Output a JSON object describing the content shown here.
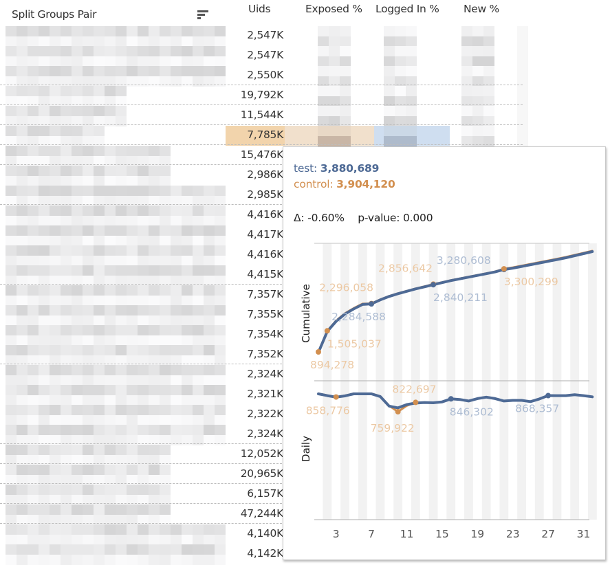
{
  "table": {
    "headers": {
      "split_groups_pair": "Split Groups Pair",
      "uids": "Uids",
      "exposed_pct": "Exposed %",
      "logged_in_pct": "Logged In %",
      "new_pct": "New %"
    },
    "sort_icon": "sort-descending-icon",
    "rows": [
      {
        "uids": "2,547K",
        "group_break_before": false
      },
      {
        "uids": "2,547K",
        "group_break_before": false
      },
      {
        "uids": "2,550K",
        "group_break_before": false
      },
      {
        "uids": "19,792K",
        "group_break_before": true
      },
      {
        "uids": "11,544K",
        "group_break_before": true
      },
      {
        "uids": "7,785K",
        "group_break_before": true,
        "highlighted": true
      },
      {
        "uids": "15,476K",
        "group_break_before": true
      },
      {
        "uids": "2,986K",
        "group_break_before": true
      },
      {
        "uids": "2,985K",
        "group_break_before": false
      },
      {
        "uids": "4,416K",
        "group_break_before": true
      },
      {
        "uids": "4,417K",
        "group_break_before": false
      },
      {
        "uids": "4,416K",
        "group_break_before": false
      },
      {
        "uids": "4,415K",
        "group_break_before": false
      },
      {
        "uids": "7,357K",
        "group_break_before": true
      },
      {
        "uids": "7,355K",
        "group_break_before": false
      },
      {
        "uids": "7,354K",
        "group_break_before": false
      },
      {
        "uids": "7,352K",
        "group_break_before": false
      },
      {
        "uids": "2,324K",
        "group_break_before": true
      },
      {
        "uids": "2,321K",
        "group_break_before": false
      },
      {
        "uids": "2,322K",
        "group_break_before": false
      },
      {
        "uids": "2,324K",
        "group_break_before": false
      },
      {
        "uids": "12,052K",
        "group_break_before": true
      },
      {
        "uids": "20,965K",
        "group_break_before": true
      },
      {
        "uids": "6,157K",
        "group_break_before": true
      },
      {
        "uids": "47,244K",
        "group_break_before": true
      },
      {
        "uids": "4,140K",
        "group_break_before": true
      },
      {
        "uids": "4,142K",
        "group_break_before": false
      }
    ],
    "highlight_colors": {
      "uids": "#f2d4ac",
      "exposed": "#f1e0cc",
      "logged_in": "#cfdef0"
    }
  },
  "tooltip": {
    "test_label": "test:",
    "test_value": "3,880,689",
    "control_label": "control:",
    "control_value": "3,904,120",
    "delta_label": "Δ:",
    "delta_value": "-0.60%",
    "pvalue_label": "p-value:",
    "pvalue_value": "0.000",
    "colors": {
      "test": "#4e6a95",
      "control": "#d28f4f",
      "test_label_light": "#aebdd3",
      "control_label_light": "#ecc9a4"
    }
  },
  "chart_data": [
    {
      "type": "line",
      "title": "",
      "ylabel": "Cumulative",
      "xlabel": "",
      "x": [
        1,
        2,
        3,
        4,
        5,
        6,
        7,
        8,
        9,
        10,
        11,
        12,
        13,
        14,
        15,
        16,
        17,
        18,
        19,
        20,
        21,
        22,
        23,
        24,
        25,
        26,
        27,
        28,
        29,
        30,
        31,
        32
      ],
      "ylim": [
        0,
        4200000
      ],
      "series": [
        {
          "name": "test",
          "color": "#4e6a95",
          "values": [
            880000,
            1490000,
            1780000,
            1990000,
            2140000,
            2270000,
            2284588,
            2400000,
            2500000,
            2580000,
            2650000,
            2720000,
            2780000,
            2840211,
            2900000,
            2960000,
            3010000,
            3060000,
            3110000,
            3160000,
            3210000,
            3280608,
            3320000,
            3370000,
            3420000,
            3470000,
            3520000,
            3570000,
            3620000,
            3680000,
            3740000,
            3800000
          ]
        },
        {
          "name": "control",
          "color": "#d28f4f",
          "values": [
            894278,
            1505037,
            1800000,
            2010000,
            2160000,
            2290000,
            2296058,
            2410000,
            2510000,
            2590000,
            2660000,
            2730000,
            2790000,
            2856642,
            2910000,
            2970000,
            3020000,
            3070000,
            3120000,
            3170000,
            3220000,
            3300299,
            3340000,
            3390000,
            3440000,
            3490000,
            3540000,
            3590000,
            3640000,
            3700000,
            3760000,
            3820000
          ]
        }
      ],
      "annotations": [
        {
          "series": "control",
          "x": 1,
          "label": "894,278"
        },
        {
          "series": "control",
          "x": 2,
          "label": "1,505,037"
        },
        {
          "series": "control",
          "x": 7,
          "label": "2,296,058"
        },
        {
          "series": "test",
          "x": 7,
          "label": "2,284,588"
        },
        {
          "series": "control",
          "x": 14,
          "label": "2,856,642"
        },
        {
          "series": "test",
          "x": 14,
          "label": "2,840,211"
        },
        {
          "series": "test",
          "x": 22,
          "label": "3,280,608"
        },
        {
          "series": "control",
          "x": 22,
          "label": "3,300,299"
        }
      ],
      "grid": "vertical-bands"
    },
    {
      "type": "line",
      "title": "",
      "ylabel": "Daily",
      "xlabel": "",
      "x": [
        1,
        2,
        3,
        4,
        5,
        6,
        7,
        8,
        9,
        10,
        11,
        12,
        13,
        14,
        15,
        16,
        17,
        18,
        19,
        20,
        21,
        22,
        23,
        24,
        25,
        26,
        27,
        28,
        29,
        30,
        31,
        32
      ],
      "xticks": [
        3,
        7,
        11,
        15,
        19,
        23,
        27,
        31
      ],
      "ylim": [
        0,
        950000
      ],
      "series": [
        {
          "name": "test",
          "color": "#4e6a95",
          "values": [
            880000,
            868000,
            858000,
            866000,
            880000,
            880000,
            880000,
            862000,
            798000,
            786000,
            808000,
            818000,
            822000,
            820000,
            826000,
            846302,
            842000,
            832000,
            848000,
            858000,
            848000,
            832000,
            836000,
            836000,
            828000,
            846000,
            868357,
            868000,
            868000,
            874000,
            868000,
            860000
          ]
        },
        {
          "name": "control",
          "color": "#d28f4f",
          "values": [
            882000,
            870000,
            858776,
            868000,
            882000,
            882000,
            882000,
            864000,
            800000,
            759922,
            800000,
            822697,
            822000,
            820000,
            826000,
            845000,
            842000,
            832000,
            848000,
            858000,
            848000,
            832000,
            836000,
            836000,
            828000,
            845000,
            866000,
            868000,
            868000,
            874000,
            868000,
            860000
          ]
        }
      ],
      "annotations": [
        {
          "series": "control",
          "x": 3,
          "label": "858,776"
        },
        {
          "series": "control",
          "x": 10,
          "label": "759,922"
        },
        {
          "series": "control",
          "x": 12,
          "label": "822,697"
        },
        {
          "series": "test",
          "x": 16,
          "label": "846,302"
        },
        {
          "series": "test",
          "x": 27,
          "label": "868,357"
        }
      ],
      "tick_labels": [
        "3",
        "7",
        "11",
        "15",
        "19",
        "23",
        "27",
        "31"
      ],
      "grid": "vertical-bands"
    }
  ]
}
